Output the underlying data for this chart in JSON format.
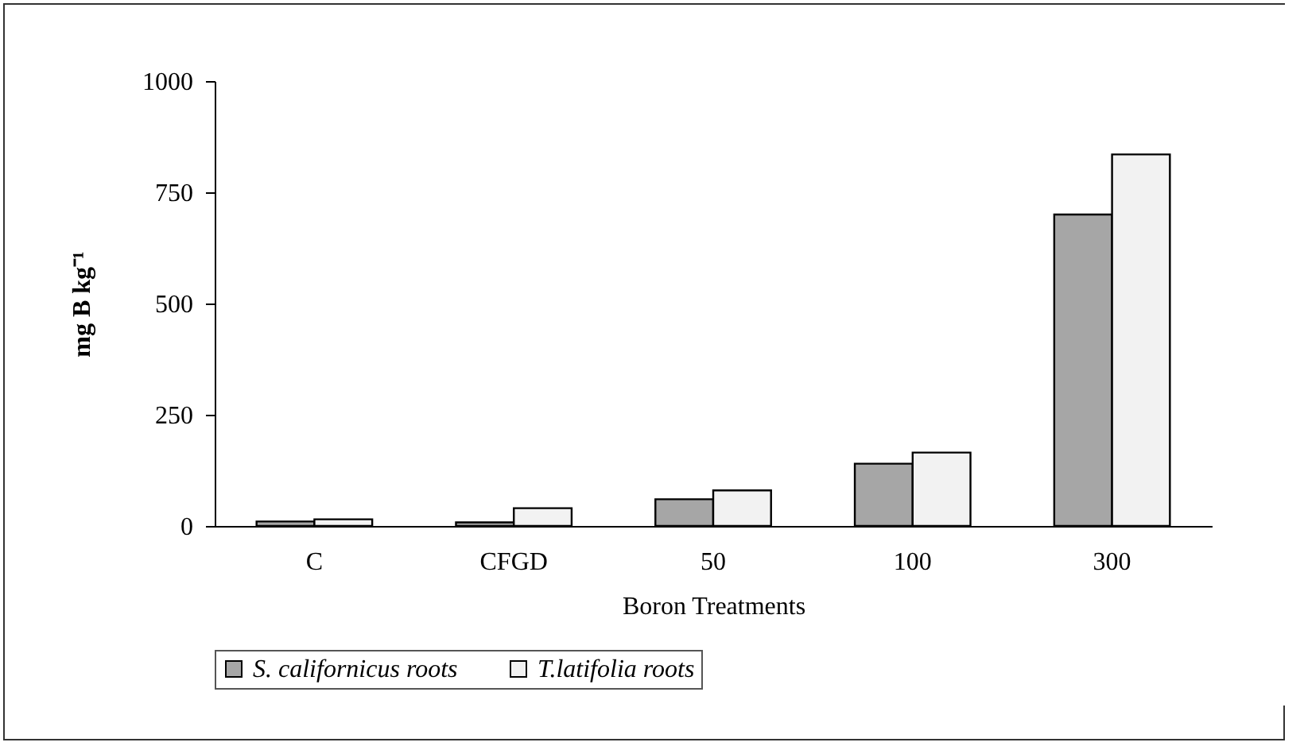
{
  "chart_data": {
    "type": "bar",
    "xlabel": "Boron Treatments",
    "ylabel": "mg B kg⁻¹",
    "categories": [
      "C",
      "CFGD",
      "50",
      "100",
      "300"
    ],
    "series": [
      {
        "name": "S. californicus roots",
        "color": "#a6a6a6",
        "values": [
          10,
          8,
          60,
          140,
          700
        ]
      },
      {
        "name": "T.latifolia roots",
        "color": "#f2f2f2",
        "values": [
          15,
          40,
          80,
          165,
          835
        ]
      }
    ],
    "ylim": [
      0,
      1000
    ],
    "yticks": [
      0,
      250,
      500,
      750,
      1000
    ],
    "grid": false,
    "legend": "bottom"
  }
}
